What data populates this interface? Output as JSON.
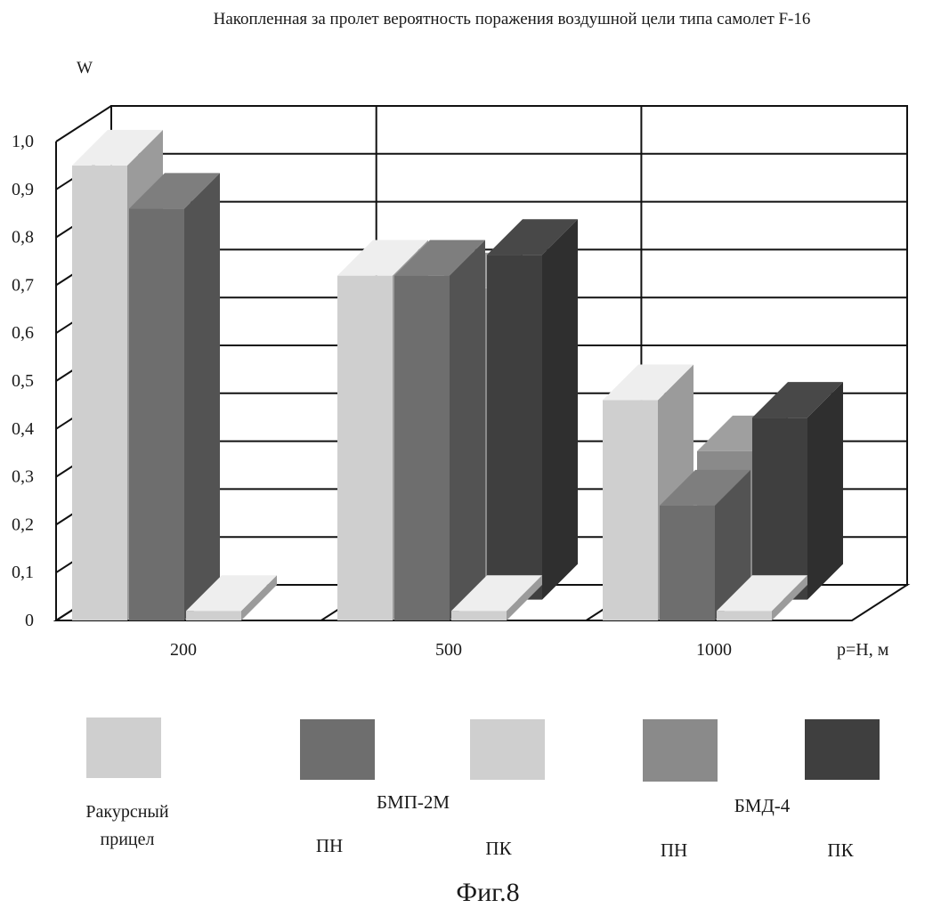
{
  "chart_data": {
    "type": "bar",
    "title": "Накопленная за пролет вероятность поражения воздушной цели типа самолет F-16",
    "ylabel": "W",
    "xlabel": "р=Н, м",
    "ylim": [
      0,
      1.0
    ],
    "yticks": [
      "0",
      "0,1",
      "0,2",
      "0,3",
      "0,4",
      "0,5",
      "0,6",
      "0,7",
      "0,8",
      "0,9",
      "1,0"
    ],
    "categories": [
      "200",
      "500",
      "1000"
    ],
    "series": [
      {
        "name": "Ракурсный прицел",
        "color": "#cfcfcf",
        "values": [
          0.95,
          0.72,
          0.46
        ]
      },
      {
        "name": "БМП-2М ПН",
        "color": "#6e6e6e",
        "values": [
          0.86,
          0.72,
          0.24
        ]
      },
      {
        "name": "БМП-2М ПК",
        "color": "#cfcfcf",
        "values": [
          0.02,
          0.02,
          0.02
        ]
      },
      {
        "name": "БМД-4 ПН",
        "color": "#8a8a8a",
        "values": [
          0.0,
          0.65,
          0.31
        ]
      },
      {
        "name": "БМД-4 ПК",
        "color": "#3f3f3f",
        "values": [
          0.0,
          0.72,
          0.38
        ]
      }
    ],
    "grid": true
  },
  "legend": {
    "swatches": [
      {
        "name": "rakursny",
        "color": "#cfcfcf"
      },
      {
        "name": "bmp-pn",
        "color": "#6e6e6e"
      },
      {
        "name": "bmp-pk",
        "color": "#cfcfcf"
      },
      {
        "name": "bmd-pn",
        "color": "#8a8a8a"
      },
      {
        "name": "bmd-pk",
        "color": "#3f3f3f"
      }
    ],
    "label_rakursny_1": "Ракурсный",
    "label_rakursny_2": "прицел",
    "label_bmp": "БМП-2М",
    "label_bmd": "БМД-4",
    "label_bmp_pn": "ПН",
    "label_bmp_pk": "ПК",
    "label_bmd_pn": "ПН",
    "label_bmd_pk": "ПК"
  },
  "figure_caption": "Фиг.8"
}
